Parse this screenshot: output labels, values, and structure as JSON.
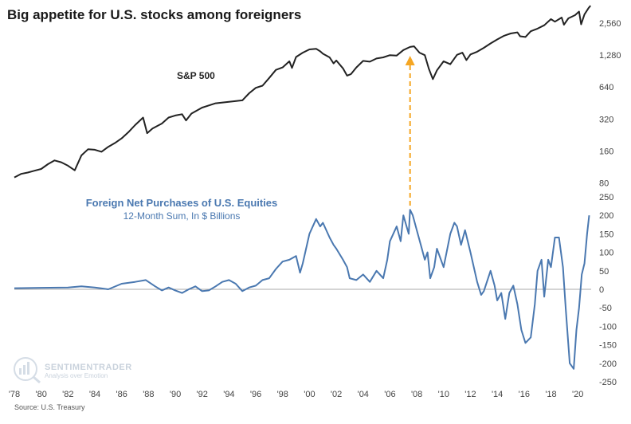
{
  "chart_data": [
    {
      "type": "line",
      "title": "Big appetite for U.S. stocks among foreigners",
      "series": [
        {
          "name": "S&P 500",
          "color": "#222222",
          "points": [
            [
              1978.0,
              90
            ],
            [
              1978.5,
              97
            ],
            [
              1979.0,
              100
            ],
            [
              1979.5,
              104
            ],
            [
              1980.0,
              108
            ],
            [
              1980.5,
              120
            ],
            [
              1981.0,
              130
            ],
            [
              1981.5,
              125
            ],
            [
              1982.0,
              116
            ],
            [
              1982.5,
              105
            ],
            [
              1983.0,
              145
            ],
            [
              1983.5,
              166
            ],
            [
              1984.0,
              164
            ],
            [
              1984.5,
              157
            ],
            [
              1985.0,
              175
            ],
            [
              1985.5,
              190
            ],
            [
              1986.0,
              210
            ],
            [
              1986.5,
              240
            ],
            [
              1987.0,
              280
            ],
            [
              1987.6,
              330
            ],
            [
              1987.9,
              235
            ],
            [
              1988.3,
              260
            ],
            [
              1989.0,
              290
            ],
            [
              1989.5,
              330
            ],
            [
              1990.0,
              345
            ],
            [
              1990.5,
              355
            ],
            [
              1990.8,
              310
            ],
            [
              1991.2,
              360
            ],
            [
              1992.0,
              410
            ],
            [
              1993.0,
              450
            ],
            [
              1994.0,
              465
            ],
            [
              1995.0,
              480
            ],
            [
              1995.5,
              560
            ],
            [
              1996.0,
              630
            ],
            [
              1996.5,
              660
            ],
            [
              1997.0,
              780
            ],
            [
              1997.5,
              930
            ],
            [
              1998.0,
              980
            ],
            [
              1998.5,
              1120
            ],
            [
              1998.7,
              970
            ],
            [
              1999.0,
              1230
            ],
            [
              1999.5,
              1350
            ],
            [
              2000.0,
              1450
            ],
            [
              2000.5,
              1470
            ],
            [
              2000.8,
              1390
            ],
            [
              2001.0,
              1320
            ],
            [
              2001.5,
              1220
            ],
            [
              2001.8,
              1070
            ],
            [
              2002.0,
              1140
            ],
            [
              2002.5,
              960
            ],
            [
              2002.8,
              820
            ],
            [
              2003.1,
              850
            ],
            [
              2003.5,
              980
            ],
            [
              2004.0,
              1130
            ],
            [
              2004.5,
              1110
            ],
            [
              2005.0,
              1190
            ],
            [
              2005.5,
              1220
            ],
            [
              2006.0,
              1280
            ],
            [
              2006.5,
              1270
            ],
            [
              2007.0,
              1430
            ],
            [
              2007.5,
              1530
            ],
            [
              2007.8,
              1550
            ],
            [
              2008.2,
              1350
            ],
            [
              2008.6,
              1280
            ],
            [
              2008.9,
              950
            ],
            [
              2009.2,
              760
            ],
            [
              2009.5,
              920
            ],
            [
              2010.0,
              1120
            ],
            [
              2010.5,
              1050
            ],
            [
              2011.0,
              1290
            ],
            [
              2011.4,
              1350
            ],
            [
              2011.7,
              1150
            ],
            [
              2012.0,
              1300
            ],
            [
              2012.5,
              1380
            ],
            [
              2013.0,
              1500
            ],
            [
              2013.5,
              1650
            ],
            [
              2014.0,
              1800
            ],
            [
              2014.5,
              1950
            ],
            [
              2015.0,
              2050
            ],
            [
              2015.5,
              2100
            ],
            [
              2015.7,
              1930
            ],
            [
              2016.1,
              1900
            ],
            [
              2016.5,
              2150
            ],
            [
              2017.0,
              2280
            ],
            [
              2017.5,
              2450
            ],
            [
              2018.0,
              2800
            ],
            [
              2018.3,
              2650
            ],
            [
              2018.8,
              2900
            ],
            [
              2018.97,
              2480
            ],
            [
              2019.3,
              2850
            ],
            [
              2019.8,
              3050
            ],
            [
              2020.1,
              3300
            ],
            [
              2020.25,
              2500
            ],
            [
              2020.5,
              3100
            ],
            [
              2020.8,
              3550
            ],
            [
              2020.95,
              3750
            ]
          ]
        },
        {
          "name": "Foreign Net Purchases of U.S. Equities",
          "subtitle": "12-Month Sum, In $ Billions",
          "color": "#4a78b0",
          "points": [
            [
              1978.0,
              3
            ],
            [
              1980.0,
              4
            ],
            [
              1982.0,
              5
            ],
            [
              1983.0,
              8
            ],
            [
              1984.0,
              5
            ],
            [
              1985.0,
              0
            ],
            [
              1986.0,
              15
            ],
            [
              1987.0,
              20
            ],
            [
              1987.8,
              25
            ],
            [
              1988.5,
              8
            ],
            [
              1989.0,
              -3
            ],
            [
              1989.5,
              5
            ],
            [
              1990.0,
              -3
            ],
            [
              1990.5,
              -10
            ],
            [
              1991.0,
              0
            ],
            [
              1991.5,
              8
            ],
            [
              1992.0,
              -5
            ],
            [
              1992.5,
              -3
            ],
            [
              1993.0,
              8
            ],
            [
              1993.5,
              20
            ],
            [
              1994.0,
              25
            ],
            [
              1994.5,
              15
            ],
            [
              1995.0,
              -5
            ],
            [
              1995.5,
              5
            ],
            [
              1996.0,
              10
            ],
            [
              1996.5,
              25
            ],
            [
              1997.0,
              30
            ],
            [
              1997.5,
              55
            ],
            [
              1998.0,
              75
            ],
            [
              1998.5,
              80
            ],
            [
              1999.0,
              90
            ],
            [
              1999.3,
              45
            ],
            [
              1999.5,
              70
            ],
            [
              2000.0,
              150
            ],
            [
              2000.5,
              190
            ],
            [
              2000.8,
              170
            ],
            [
              2001.0,
              180
            ],
            [
              2001.5,
              140
            ],
            [
              2001.8,
              120
            ],
            [
              2002.0,
              110
            ],
            [
              2002.5,
              80
            ],
            [
              2002.8,
              60
            ],
            [
              2003.0,
              30
            ],
            [
              2003.5,
              25
            ],
            [
              2004.0,
              40
            ],
            [
              2004.5,
              20
            ],
            [
              2005.0,
              50
            ],
            [
              2005.5,
              30
            ],
            [
              2005.8,
              80
            ],
            [
              2006.0,
              130
            ],
            [
              2006.5,
              170
            ],
            [
              2006.8,
              130
            ],
            [
              2007.0,
              200
            ],
            [
              2007.4,
              150
            ],
            [
              2007.5,
              215
            ],
            [
              2007.7,
              200
            ],
            [
              2008.0,
              160
            ],
            [
              2008.3,
              120
            ],
            [
              2008.6,
              80
            ],
            [
              2008.8,
              100
            ],
            [
              2009.0,
              30
            ],
            [
              2009.3,
              60
            ],
            [
              2009.5,
              110
            ],
            [
              2010.0,
              60
            ],
            [
              2010.5,
              150
            ],
            [
              2010.8,
              180
            ],
            [
              2011.0,
              170
            ],
            [
              2011.3,
              120
            ],
            [
              2011.6,
              160
            ],
            [
              2012.0,
              100
            ],
            [
              2012.5,
              20
            ],
            [
              2012.8,
              -15
            ],
            [
              2013.0,
              -5
            ],
            [
              2013.5,
              50
            ],
            [
              2013.8,
              10
            ],
            [
              2014.0,
              -30
            ],
            [
              2014.3,
              -10
            ],
            [
              2014.6,
              -80
            ],
            [
              2014.9,
              -10
            ],
            [
              2015.2,
              10
            ],
            [
              2015.5,
              -40
            ],
            [
              2015.8,
              -110
            ],
            [
              2016.1,
              -145
            ],
            [
              2016.5,
              -130
            ],
            [
              2016.8,
              -40
            ],
            [
              2017.0,
              50
            ],
            [
              2017.3,
              80
            ],
            [
              2017.5,
              -20
            ],
            [
              2017.8,
              80
            ],
            [
              2018.0,
              60
            ],
            [
              2018.3,
              140
            ],
            [
              2018.6,
              140
            ],
            [
              2018.9,
              60
            ],
            [
              2019.1,
              -50
            ],
            [
              2019.4,
              -200
            ],
            [
              2019.7,
              -215
            ],
            [
              2019.9,
              -110
            ],
            [
              2020.1,
              -50
            ],
            [
              2020.3,
              40
            ],
            [
              2020.5,
              70
            ],
            [
              2020.7,
              150
            ],
            [
              2020.85,
              200
            ]
          ]
        }
      ],
      "annotations": [
        {
          "type": "arrow",
          "color": "#f5a623",
          "x": 2007.5
        }
      ],
      "labels": {
        "sp500": "S&P 500",
        "foreign_title": "Foreign Net Purchases of U.S. Equities",
        "foreign_subtitle": "12-Month Sum, In $ Billions"
      },
      "x_axis": {
        "range": [
          1978,
          2021
        ],
        "ticks": [
          "'78",
          "'80",
          "'82",
          "'84",
          "'86",
          "'88",
          "'90",
          "'92",
          "'94",
          "'96",
          "'98",
          "'00",
          "'02",
          "'04",
          "'06",
          "'08",
          "'10",
          "'12",
          "'14",
          "'16",
          "'18",
          "'20"
        ]
      },
      "y_axis_upper": {
        "scale": "log",
        "range": [
          60,
          3000
        ],
        "ticks": [
          "2,560",
          "1,280",
          "640",
          "320",
          "160",
          "80"
        ]
      },
      "y_axis_lower": {
        "scale": "linear",
        "range": [
          -250,
          250
        ],
        "ticks": [
          "250",
          "200",
          "150",
          "100",
          "50",
          "0",
          "-50",
          "-100",
          "-150",
          "-200",
          "-250"
        ]
      },
      "source": "Source: U.S. Treasury",
      "watermark": {
        "brand": "SENTIMENTRADER",
        "tagline": "Analysis over Emotion"
      }
    }
  ]
}
